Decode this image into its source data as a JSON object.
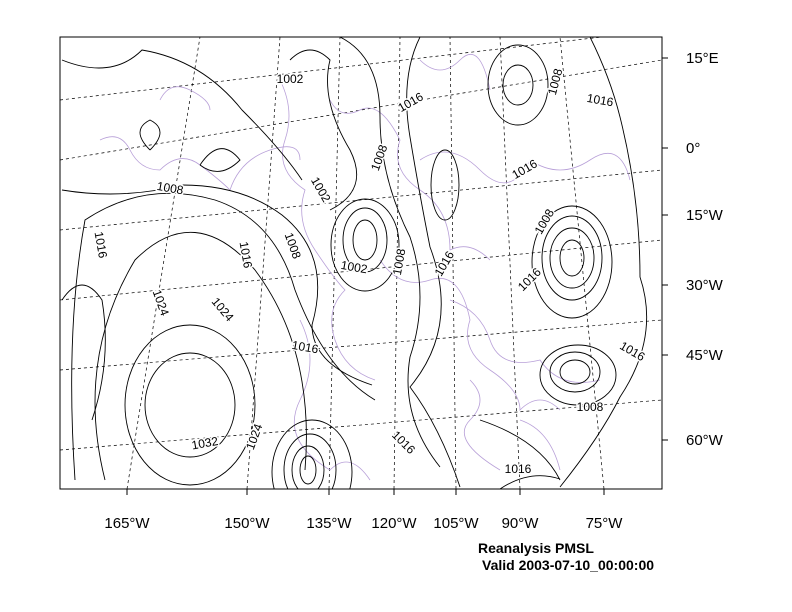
{
  "title": "Reanalysis PMSL",
  "valid": "Valid 2003-07-10_00:00:00",
  "colors": {
    "contour": "#000000",
    "coast": "#b8a0d8",
    "frame": "#000000"
  },
  "lat_labels": [
    "15°E",
    "0°",
    "15°W",
    "30°W",
    "45°W",
    "60°W"
  ],
  "lon_labels": [
    "165°W",
    "150°W",
    "135°W",
    "120°W",
    "105°W",
    "90°W",
    "75°W"
  ],
  "contour_labels": [
    "1002",
    "1016",
    "1008",
    "1016",
    "1008",
    "1002",
    "1016",
    "1008",
    "1016",
    "1016",
    "1008",
    "1008",
    "1002",
    "1008",
    "1016",
    "1016",
    "1024",
    "1024",
    "1016",
    "1016",
    "1008",
    "1032",
    "1024",
    "1016",
    "1016"
  ]
}
